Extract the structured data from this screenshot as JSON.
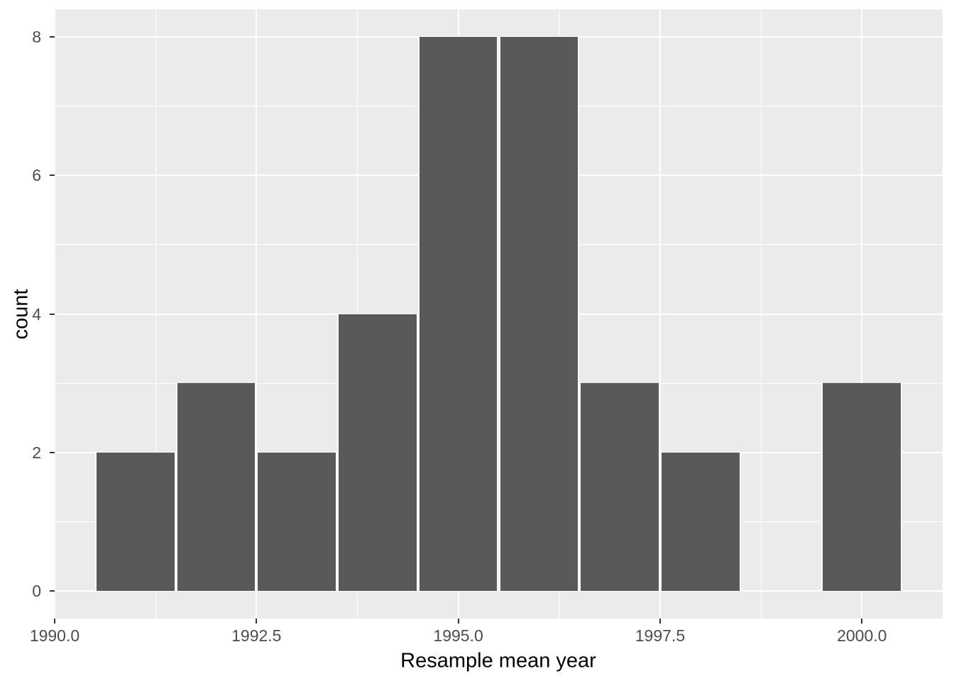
{
  "chart_data": {
    "type": "bar",
    "subtype": "histogram",
    "title": "",
    "xlabel": "Resample mean year",
    "ylabel": "count",
    "xlim": [
      1990.0,
      2001.0
    ],
    "ylim": [
      -0.4,
      8.4
    ],
    "grid": true,
    "legend": "none",
    "x_ticks": [
      {
        "value": 1990.0,
        "label": "1990.0"
      },
      {
        "value": 1992.5,
        "label": "1992.5"
      },
      {
        "value": 1995.0,
        "label": "1995.0"
      },
      {
        "value": 1997.5,
        "label": "1997.5"
      },
      {
        "value": 2000.0,
        "label": "2000.0"
      }
    ],
    "y_ticks": [
      {
        "value": 0,
        "label": "0"
      },
      {
        "value": 2,
        "label": "2"
      },
      {
        "value": 4,
        "label": "4"
      },
      {
        "value": 6,
        "label": "6"
      },
      {
        "value": 8,
        "label": "8"
      }
    ],
    "x_minor": [
      1991.25,
      1993.75,
      1996.25,
      1998.75
    ],
    "y_minor": [
      1,
      3,
      5,
      7
    ],
    "bin_width": 1,
    "bins": [
      {
        "x0": 1990.5,
        "x1": 1991.5,
        "count": 2
      },
      {
        "x0": 1991.5,
        "x1": 1992.5,
        "count": 3
      },
      {
        "x0": 1992.5,
        "x1": 1993.5,
        "count": 2
      },
      {
        "x0": 1993.5,
        "x1": 1994.5,
        "count": 4
      },
      {
        "x0": 1994.5,
        "x1": 1995.5,
        "count": 8
      },
      {
        "x0": 1995.5,
        "x1": 1996.5,
        "count": 8
      },
      {
        "x0": 1996.5,
        "x1": 1997.5,
        "count": 3
      },
      {
        "x0": 1997.5,
        "x1": 1998.5,
        "count": 2
      },
      {
        "x0": 1998.5,
        "x1": 1999.5,
        "count": 0
      },
      {
        "x0": 1999.5,
        "x1": 2000.5,
        "count": 3
      }
    ],
    "colors": {
      "panel_bg": "#EBEBEB",
      "bar_fill": "#595959",
      "bar_border": "#FFFFFF",
      "grid_major": "#FFFFFF",
      "grid_minor": "#FFFFFF",
      "axis_text": "#4D4D4D",
      "axis_title": "#000000",
      "tick_mark": "#333333",
      "outer_bg": "#FFFFFF"
    }
  }
}
